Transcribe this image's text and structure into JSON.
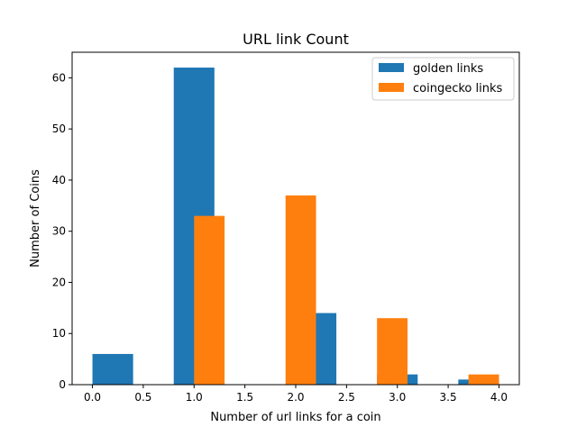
{
  "chart_data": {
    "type": "bar",
    "title": "URL link Count",
    "xlabel": "Number of url links for a coin",
    "ylabel": "Number of Coins",
    "xlim": [
      -0.2,
      4.2
    ],
    "ylim": [
      0,
      65
    ],
    "xticks": [
      0.0,
      0.5,
      1.0,
      1.5,
      2.0,
      2.5,
      3.0,
      3.5,
      4.0
    ],
    "xtick_labels": [
      "0.0",
      "0.5",
      "1.0",
      "1.5",
      "2.0",
      "2.5",
      "3.0",
      "3.5",
      "4.0"
    ],
    "yticks": [
      0,
      10,
      20,
      30,
      40,
      50,
      60
    ],
    "ytick_labels": [
      "0",
      "10",
      "20",
      "30",
      "40",
      "50",
      "60"
    ],
    "grid": false,
    "legend_position": "top-right",
    "series": [
      {
        "name": "golden links",
        "color": "#1f77b4",
        "bars": [
          {
            "x0": 0.0,
            "x1": 0.4,
            "value": 6
          },
          {
            "x0": 0.8,
            "x1": 1.2,
            "value": 62
          },
          {
            "x0": 1.6,
            "x1": 2.0,
            "value": 0
          },
          {
            "x0": 2.0,
            "x1": 2.4,
            "value": 14
          },
          {
            "x0": 2.8,
            "x1": 3.2,
            "value": 2
          },
          {
            "x0": 3.6,
            "x1": 4.0,
            "value": 1
          }
        ]
      },
      {
        "name": "coingecko links",
        "color": "#ff7f0e",
        "bars": [
          {
            "x0": 1.0,
            "x1": 1.3,
            "value": 33
          },
          {
            "x0": 1.3,
            "x1": 1.6,
            "value": 0
          },
          {
            "x0": 1.6,
            "x1": 1.9,
            "value": 0
          },
          {
            "x0": 1.9,
            "x1": 2.2,
            "value": 37
          },
          {
            "x0": 2.2,
            "x1": 2.5,
            "value": 0
          },
          {
            "x0": 2.5,
            "x1": 2.8,
            "value": 0
          },
          {
            "x0": 2.8,
            "x1": 3.1,
            "value": 13
          },
          {
            "x0": 3.1,
            "x1": 3.4,
            "value": 0
          },
          {
            "x0": 3.4,
            "x1": 3.7,
            "value": 0
          },
          {
            "x0": 3.7,
            "x1": 4.0,
            "value": 2
          }
        ]
      }
    ]
  }
}
